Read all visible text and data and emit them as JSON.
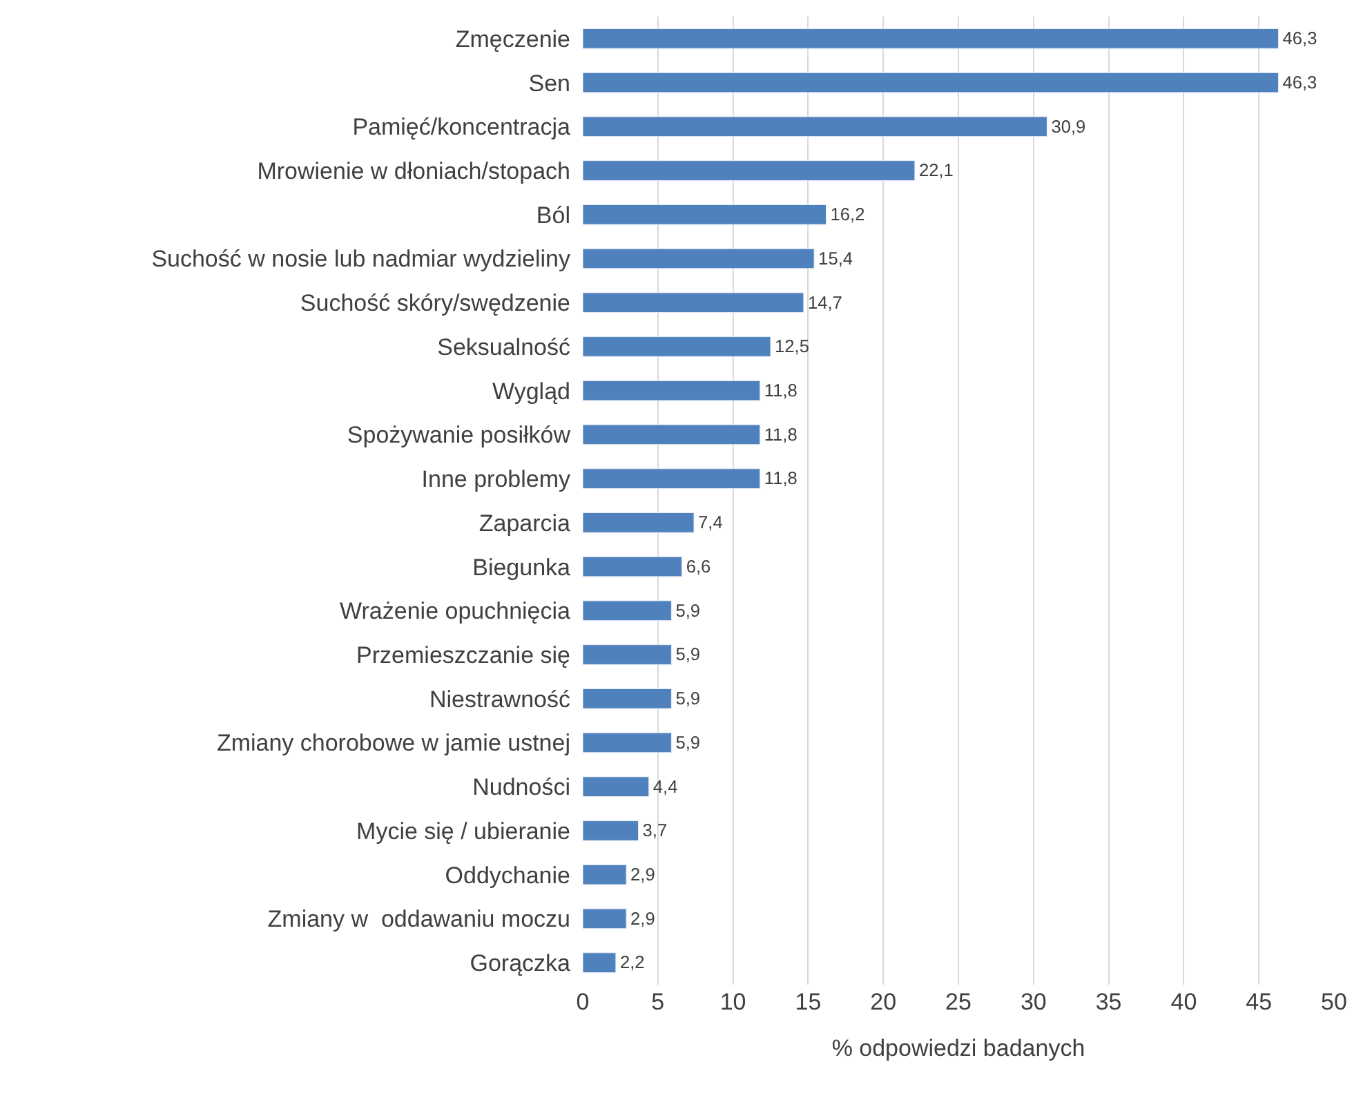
{
  "chart_data": {
    "type": "bar",
    "orientation": "horizontal",
    "xlabel": "% odpowiedzi badanych",
    "categories": [
      "Zmęczenie",
      "Sen",
      "Pamięć/koncentracja",
      "Mrowienie w dłoniach/stopach",
      "Ból",
      "Suchość w nosie lub nadmiar wydzieliny",
      "Suchość skóry/swędzenie",
      "Seksualność",
      "Wygląd",
      "Spożywanie posiłków",
      "Inne problemy",
      "Zaparcia",
      "Biegunka",
      "Wrażenie opuchnięcia",
      "Przemieszczanie się",
      "Niestrawność",
      "Zmiany chorobowe w jamie ustnej",
      "Nudności",
      "Mycie się / ubieranie",
      "Oddychanie",
      "Zmiany w  oddawaniu moczu",
      "Gorączka"
    ],
    "values": [
      46.3,
      46.3,
      30.9,
      22.1,
      16.2,
      15.4,
      14.7,
      12.5,
      11.8,
      11.8,
      11.8,
      7.4,
      6.6,
      5.9,
      5.9,
      5.9,
      5.9,
      4.4,
      3.7,
      2.9,
      2.9,
      2.2
    ],
    "value_labels": [
      "46,3",
      "46,3",
      "30,9",
      "22,1",
      "16,2",
      "15,4",
      "14,7",
      "12,5",
      "11,8",
      "11,8",
      "11,8",
      "7,4",
      "6,6",
      "5,9",
      "5,9",
      "5,9",
      "5,9",
      "4,4",
      "3,7",
      "2,9",
      "2,9",
      "2,2"
    ],
    "color": "#4f81bd",
    "xlim": [
      0,
      50
    ],
    "xticks": [
      0,
      5,
      10,
      15,
      20,
      25,
      30,
      35,
      40,
      45,
      50
    ],
    "grid": "x",
    "legend": false
  }
}
